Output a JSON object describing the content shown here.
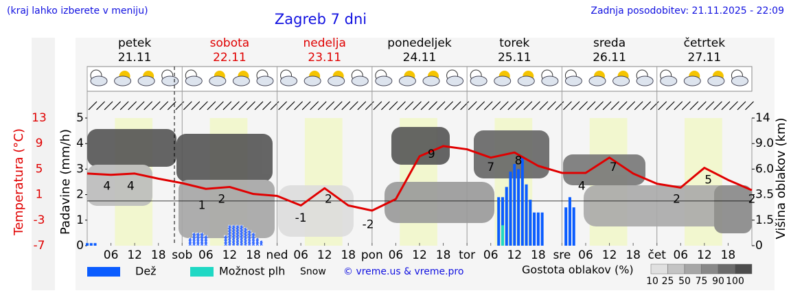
{
  "header": {
    "note": "(kraj lahko izberete v meniju)",
    "title": "Zagreb 7 dni",
    "updated": "Zadnja posodobitev: 21.11.2025 - 22:09"
  },
  "chart_data": {
    "type": "line",
    "days": [
      {
        "name": "petek",
        "date": "21.11",
        "color": "#000000"
      },
      {
        "name": "sobota",
        "date": "22.11",
        "color": "#e00000"
      },
      {
        "name": "nedelja",
        "date": "23.11",
        "color": "#e00000"
      },
      {
        "name": "ponedeljek",
        "date": "24.11",
        "color": "#000000"
      },
      {
        "name": "torek",
        "date": "25.11",
        "color": "#000000"
      },
      {
        "name": "sreda",
        "date": "26.11",
        "color": "#000000"
      },
      {
        "name": "četrtek",
        "date": "27.11",
        "color": "#000000"
      }
    ],
    "xlim": [
      0,
      168
    ],
    "xticks": [
      {
        "value": 6,
        "label": "06"
      },
      {
        "value": 12,
        "label": "12"
      },
      {
        "value": 18,
        "label": "18"
      },
      {
        "value": 24,
        "label": "sob"
      },
      {
        "value": 30,
        "label": "06"
      },
      {
        "value": 36,
        "label": "12"
      },
      {
        "value": 42,
        "label": "18"
      },
      {
        "value": 48,
        "label": "ned"
      },
      {
        "value": 54,
        "label": "06"
      },
      {
        "value": 60,
        "label": "12"
      },
      {
        "value": 66,
        "label": "18"
      },
      {
        "value": 72,
        "label": "pon"
      },
      {
        "value": 78,
        "label": "06"
      },
      {
        "value": 84,
        "label": "12"
      },
      {
        "value": 90,
        "label": "18"
      },
      {
        "value": 96,
        "label": "tor"
      },
      {
        "value": 102,
        "label": "06"
      },
      {
        "value": 108,
        "label": "12"
      },
      {
        "value": 114,
        "label": "18"
      },
      {
        "value": 120,
        "label": "sre"
      },
      {
        "value": 126,
        "label": "06"
      },
      {
        "value": 132,
        "label": "12"
      },
      {
        "value": 138,
        "label": "18"
      },
      {
        "value": 144,
        "label": "čet"
      },
      {
        "value": 150,
        "label": "06"
      },
      {
        "value": 156,
        "label": "12"
      },
      {
        "value": 162,
        "label": "18"
      }
    ],
    "temperature": {
      "label": "Temperatura (°C)",
      "color": "#e00000",
      "ylim": [
        -7,
        13
      ],
      "yticks": [
        13,
        9,
        5,
        1,
        -3,
        -7
      ],
      "x": [
        0,
        6,
        12,
        18,
        24,
        30,
        36,
        42,
        48,
        54,
        60,
        66,
        72,
        78,
        84,
        90,
        96,
        102,
        108,
        114,
        120,
        126,
        132,
        138,
        144,
        150,
        156,
        162,
        168
      ],
      "values": [
        4.3,
        4.1,
        4.3,
        3.5,
        2.8,
        1.9,
        2.2,
        1.1,
        0.8,
        -0.7,
        2.0,
        -0.7,
        -1.5,
        0.3,
        7.0,
        8.6,
        8.1,
        6.8,
        7.6,
        5.5,
        4.4,
        4.4,
        6.8,
        4.3,
        2.7,
        2.1,
        5.2,
        3.3,
        1.7
      ],
      "labels": [
        {
          "x": 5,
          "value": 4
        },
        {
          "x": 11,
          "value": 4
        },
        {
          "x": 29,
          "value": 1
        },
        {
          "x": 34,
          "value": 2
        },
        {
          "x": 54,
          "value": -1
        },
        {
          "x": 61,
          "value": 2
        },
        {
          "x": 71,
          "value": -2
        },
        {
          "x": 87,
          "value": 9
        },
        {
          "x": 102,
          "value": 7
        },
        {
          "x": 109,
          "value": 8
        },
        {
          "x": 125,
          "value": 4
        },
        {
          "x": 133,
          "value": 7
        },
        {
          "x": 149,
          "value": 2
        },
        {
          "x": 157,
          "value": 5
        },
        {
          "x": 168,
          "value": 2
        }
      ]
    },
    "precipitation": {
      "label": "Padavine (mm/h)",
      "ylim": [
        0,
        5
      ],
      "yticks": [
        0,
        1,
        2,
        3,
        4,
        5
      ],
      "series": [
        {
          "name": "Dež",
          "color": "#0a5cff",
          "x": [
            0,
            1,
            2,
            104,
            105,
            106,
            107,
            108,
            109,
            110,
            111,
            112,
            113,
            114,
            115,
            121,
            122,
            123
          ],
          "values": [
            0.1,
            0.1,
            0.1,
            1.9,
            1.9,
            2.3,
            2.9,
            3.2,
            3.0,
            3.5,
            2.4,
            1.8,
            1.3,
            1.3,
            1.3,
            1.5,
            1.9,
            1.5
          ]
        },
        {
          "name": "Možnost plh",
          "color": "#1fd8c4",
          "x": [
            105
          ],
          "values": [
            0.8
          ]
        },
        {
          "name": "Snow",
          "color": "#3b6fff",
          "x": [
            26,
            27,
            28,
            29,
            30,
            35,
            36,
            37,
            38,
            39,
            40,
            41,
            42,
            43,
            44
          ],
          "values": [
            0.3,
            0.5,
            0.5,
            0.5,
            0.4,
            0.4,
            0.8,
            0.8,
            0.8,
            0.8,
            0.7,
            0.6,
            0.5,
            0.3,
            0.2
          ]
        }
      ]
    },
    "cloud_height": {
      "label": "Višina oblakov (km)",
      "y2ticks": [
        0,
        1.5,
        3.5,
        {
          "value": 6,
          "label": "6.0"
        },
        {
          "value": 9,
          "label": "9.0"
        },
        14
      ]
    },
    "cloud_density": {
      "label": "Gostota oblakov (%)",
      "ticks": [
        10,
        25,
        50,
        75,
        90,
        100
      ],
      "colors": [
        "#e0e0e0",
        "#c4c4c4",
        "#a6a6a6",
        "#888888",
        "#6a6a6a",
        "#4c4c4c"
      ]
    },
    "credit": "© vreme.us & vreme.pro"
  }
}
